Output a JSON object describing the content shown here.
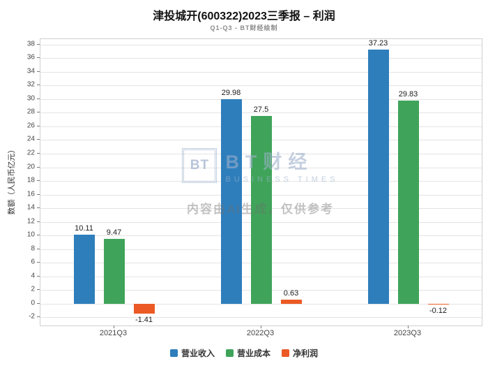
{
  "header": {
    "title": "津投城开(600322)2023三季报 – 利润",
    "subtitle": "Q1-Q3 - BT财经绘制"
  },
  "watermark": {
    "logo_box": "BT",
    "logo_text": "BT财经",
    "logo_sub": "BUSINESS TIMES",
    "disclaimer": "内容由AI生成，仅供参考"
  },
  "chart_data": {
    "type": "bar",
    "title": "津投城开(600322)2023三季报 – 利润",
    "subtitle": "Q1-Q3 - BT财经绘制",
    "categories": [
      "2021Q3",
      "2022Q3",
      "2023Q3"
    ],
    "series": [
      {
        "name": "营业收入",
        "color": "#2e7ebc",
        "values": [
          10.11,
          29.98,
          37.23
        ]
      },
      {
        "name": "营业成本",
        "color": "#3fa45a",
        "values": [
          9.47,
          27.5,
          29.83
        ]
      },
      {
        "name": "净利润",
        "color": "#eb5a24",
        "values": [
          -1.41,
          0.63,
          -0.12
        ]
      }
    ],
    "xlabel": "",
    "ylabel": "数额（人民币亿元）",
    "yticks": [
      -2,
      0,
      2,
      4,
      6,
      8,
      10,
      12,
      14,
      16,
      18,
      20,
      22,
      24,
      26,
      28,
      30,
      32,
      34,
      36,
      38
    ],
    "ylim": [
      -3.2,
      38.8
    ],
    "grid": true,
    "legend_position": "bottom"
  }
}
